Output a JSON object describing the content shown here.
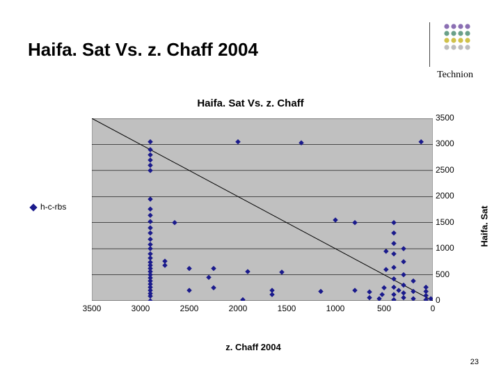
{
  "slide": {
    "title": "Haifa. Sat Vs. z. Chaff 2004",
    "institution": "Technion",
    "page_number": "23"
  },
  "logo": {
    "divider_x_offset": 18,
    "rows": 4,
    "cols": 4,
    "cell": 10,
    "r": 3.6,
    "colors": [
      "#8b6fb3",
      "#8b6fb3",
      "#8b6fb3",
      "#8b6fb3",
      "#6aa089",
      "#6aa089",
      "#6aa089",
      "#6aa089",
      "#d0c24a",
      "#d0c24a",
      "#d0c24a",
      "#d0c24a",
      "#bcbcbc",
      "#bcbcbc",
      "#bcbcbc",
      "#bcbcbc"
    ]
  },
  "chart": {
    "super_title": "Haifa. Sat Vs. z. Chaff",
    "type": "scatter",
    "xlabel": "z. Chaff 2004",
    "ylabel": "Haifa. Sat",
    "x_reversed": true,
    "y_axis_position": "right",
    "xlim": [
      3500,
      0
    ],
    "ylim": [
      0,
      3500
    ],
    "xticks": [
      3500,
      3000,
      2500,
      2000,
      1500,
      1000,
      500,
      0
    ],
    "yticks": [
      0,
      500,
      1000,
      1500,
      2000,
      2500,
      3000,
      3500
    ],
    "plot_bg": "#c0c0c0",
    "grid_color": "#000000",
    "grid_width": 0.6,
    "border_color": "#7f7f7f",
    "diag_line": {
      "from": [
        3500,
        3500
      ],
      "to": [
        0,
        0
      ],
      "color": "#000",
      "width": 1
    },
    "legend": {
      "label": "h-c-rbs",
      "color": "#1a1a8c"
    },
    "marker": {
      "shape": "diamond",
      "size": 7,
      "fill": "#1a1a8c",
      "stroke": "#1a1a8c"
    },
    "points": [
      [
        2900,
        0
      ],
      [
        2900,
        90
      ],
      [
        2900,
        140
      ],
      [
        2900,
        200
      ],
      [
        2900,
        260
      ],
      [
        2900,
        320
      ],
      [
        2900,
        380
      ],
      [
        2900,
        440
      ],
      [
        2900,
        500
      ],
      [
        2900,
        560
      ],
      [
        2900,
        620
      ],
      [
        2900,
        680
      ],
      [
        2900,
        740
      ],
      [
        2900,
        820
      ],
      [
        2900,
        900
      ],
      [
        2900,
        1000
      ],
      [
        2900,
        1080
      ],
      [
        2900,
        1180
      ],
      [
        2900,
        1300
      ],
      [
        2900,
        1400
      ],
      [
        2900,
        1520
      ],
      [
        2900,
        1640
      ],
      [
        2900,
        1760
      ],
      [
        2900,
        1950
      ],
      [
        2900,
        2500
      ],
      [
        2900,
        2600
      ],
      [
        2900,
        2700
      ],
      [
        2900,
        2800
      ],
      [
        2900,
        2900
      ],
      [
        2900,
        3050
      ],
      [
        2750,
        680
      ],
      [
        2750,
        760
      ],
      [
        2650,
        1500
      ],
      [
        2500,
        200
      ],
      [
        2500,
        620
      ],
      [
        2300,
        450
      ],
      [
        2250,
        250
      ],
      [
        2250,
        620
      ],
      [
        2000,
        3050
      ],
      [
        1950,
        20
      ],
      [
        1900,
        560
      ],
      [
        1650,
        120
      ],
      [
        1650,
        200
      ],
      [
        1550,
        550
      ],
      [
        1350,
        3030
      ],
      [
        1150,
        180
      ],
      [
        1000,
        1550
      ],
      [
        800,
        1500
      ],
      [
        800,
        200
      ],
      [
        650,
        60
      ],
      [
        650,
        170
      ],
      [
        550,
        40
      ],
      [
        520,
        120
      ],
      [
        500,
        250
      ],
      [
        480,
        600
      ],
      [
        480,
        950
      ],
      [
        400,
        20
      ],
      [
        400,
        120
      ],
      [
        400,
        260
      ],
      [
        400,
        420
      ],
      [
        400,
        640
      ],
      [
        400,
        900
      ],
      [
        400,
        1100
      ],
      [
        400,
        1300
      ],
      [
        400,
        1500
      ],
      [
        350,
        200
      ],
      [
        300,
        60
      ],
      [
        300,
        150
      ],
      [
        300,
        300
      ],
      [
        300,
        500
      ],
      [
        300,
        750
      ],
      [
        300,
        1000
      ],
      [
        200,
        40
      ],
      [
        200,
        180
      ],
      [
        200,
        380
      ],
      [
        120,
        3050
      ],
      [
        70,
        20
      ],
      [
        70,
        100
      ],
      [
        70,
        180
      ],
      [
        70,
        260
      ],
      [
        20,
        40
      ]
    ]
  }
}
